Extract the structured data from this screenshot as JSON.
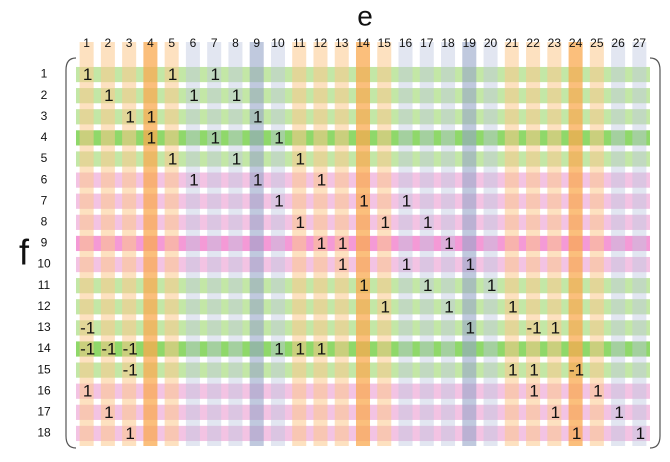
{
  "column_title": "e",
  "row_title": "f",
  "column_labels": [
    1,
    2,
    3,
    4,
    5,
    6,
    7,
    8,
    9,
    10,
    11,
    12,
    13,
    14,
    15,
    16,
    17,
    18,
    19,
    20,
    21,
    22,
    23,
    24,
    25,
    26,
    27
  ],
  "row_labels": [
    1,
    2,
    3,
    4,
    5,
    6,
    7,
    8,
    9,
    10,
    11,
    12,
    13,
    14,
    15,
    16,
    17,
    18
  ],
  "rows": [
    [
      1,
      null,
      null,
      null,
      1,
      null,
      1,
      null,
      null,
      null,
      null,
      null,
      null,
      null,
      null,
      null,
      null,
      null,
      null,
      null,
      null,
      null,
      null,
      null,
      null,
      null,
      null
    ],
    [
      null,
      1,
      null,
      null,
      null,
      1,
      null,
      1,
      null,
      null,
      null,
      null,
      null,
      null,
      null,
      null,
      null,
      null,
      null,
      null,
      null,
      null,
      null,
      null,
      null,
      null,
      null
    ],
    [
      null,
      null,
      1,
      1,
      null,
      null,
      null,
      null,
      1,
      null,
      null,
      null,
      null,
      null,
      null,
      null,
      null,
      null,
      null,
      null,
      null,
      null,
      null,
      null,
      null,
      null,
      null
    ],
    [
      null,
      null,
      null,
      1,
      null,
      null,
      1,
      null,
      null,
      1,
      null,
      null,
      null,
      null,
      null,
      null,
      null,
      null,
      null,
      null,
      null,
      null,
      null,
      null,
      null,
      null,
      null
    ],
    [
      null,
      null,
      null,
      null,
      1,
      null,
      null,
      1,
      null,
      null,
      1,
      null,
      null,
      null,
      null,
      null,
      null,
      null,
      null,
      null,
      null,
      null,
      null,
      null,
      null,
      null,
      null
    ],
    [
      null,
      null,
      null,
      null,
      null,
      1,
      null,
      null,
      1,
      null,
      null,
      1,
      null,
      null,
      null,
      null,
      null,
      null,
      null,
      null,
      null,
      null,
      null,
      null,
      null,
      null,
      null
    ],
    [
      null,
      null,
      null,
      null,
      null,
      null,
      null,
      null,
      null,
      1,
      null,
      null,
      null,
      1,
      null,
      1,
      null,
      null,
      null,
      null,
      null,
      null,
      null,
      null,
      null,
      null,
      null
    ],
    [
      null,
      null,
      null,
      null,
      null,
      null,
      null,
      null,
      null,
      null,
      1,
      null,
      null,
      null,
      1,
      null,
      1,
      null,
      null,
      null,
      null,
      null,
      null,
      null,
      null,
      null,
      null
    ],
    [
      null,
      null,
      null,
      null,
      null,
      null,
      null,
      null,
      null,
      null,
      null,
      1,
      1,
      null,
      null,
      null,
      null,
      1,
      null,
      null,
      null,
      null,
      null,
      null,
      null,
      null,
      null
    ],
    [
      null,
      null,
      null,
      null,
      null,
      null,
      null,
      null,
      null,
      null,
      null,
      null,
      1,
      null,
      null,
      1,
      null,
      null,
      1,
      null,
      null,
      null,
      null,
      null,
      null,
      null,
      null
    ],
    [
      null,
      null,
      null,
      null,
      null,
      null,
      null,
      null,
      null,
      null,
      null,
      null,
      null,
      1,
      null,
      null,
      1,
      null,
      null,
      1,
      null,
      null,
      null,
      null,
      null,
      null,
      null
    ],
    [
      null,
      null,
      null,
      null,
      null,
      null,
      null,
      null,
      null,
      null,
      null,
      null,
      null,
      null,
      1,
      null,
      null,
      1,
      null,
      null,
      1,
      null,
      null,
      null,
      null,
      null,
      null
    ],
    [
      -1,
      null,
      null,
      null,
      null,
      null,
      null,
      null,
      null,
      null,
      null,
      null,
      null,
      null,
      null,
      null,
      null,
      null,
      1,
      null,
      null,
      -1,
      1,
      null,
      null,
      null,
      null
    ],
    [
      -1,
      -1,
      -1,
      null,
      null,
      null,
      null,
      null,
      null,
      1,
      1,
      1,
      null,
      null,
      null,
      null,
      null,
      null,
      null,
      null,
      null,
      null,
      null,
      null,
      null,
      null,
      null
    ],
    [
      null,
      null,
      -1,
      null,
      null,
      null,
      null,
      null,
      null,
      null,
      null,
      null,
      null,
      null,
      null,
      null,
      null,
      null,
      null,
      null,
      1,
      1,
      null,
      -1,
      null,
      null,
      null
    ],
    [
      1,
      null,
      null,
      null,
      null,
      null,
      null,
      null,
      null,
      null,
      null,
      null,
      null,
      null,
      null,
      null,
      null,
      null,
      null,
      null,
      null,
      1,
      null,
      null,
      1,
      null,
      null
    ],
    [
      null,
      1,
      null,
      null,
      null,
      null,
      null,
      null,
      null,
      null,
      null,
      null,
      null,
      null,
      null,
      null,
      null,
      null,
      null,
      null,
      null,
      null,
      1,
      null,
      null,
      1,
      null
    ],
    [
      null,
      null,
      1,
      null,
      null,
      null,
      null,
      null,
      null,
      null,
      null,
      null,
      null,
      null,
      null,
      null,
      null,
      null,
      null,
      null,
      null,
      null,
      null,
      1,
      null,
      null,
      1
    ]
  ]
}
